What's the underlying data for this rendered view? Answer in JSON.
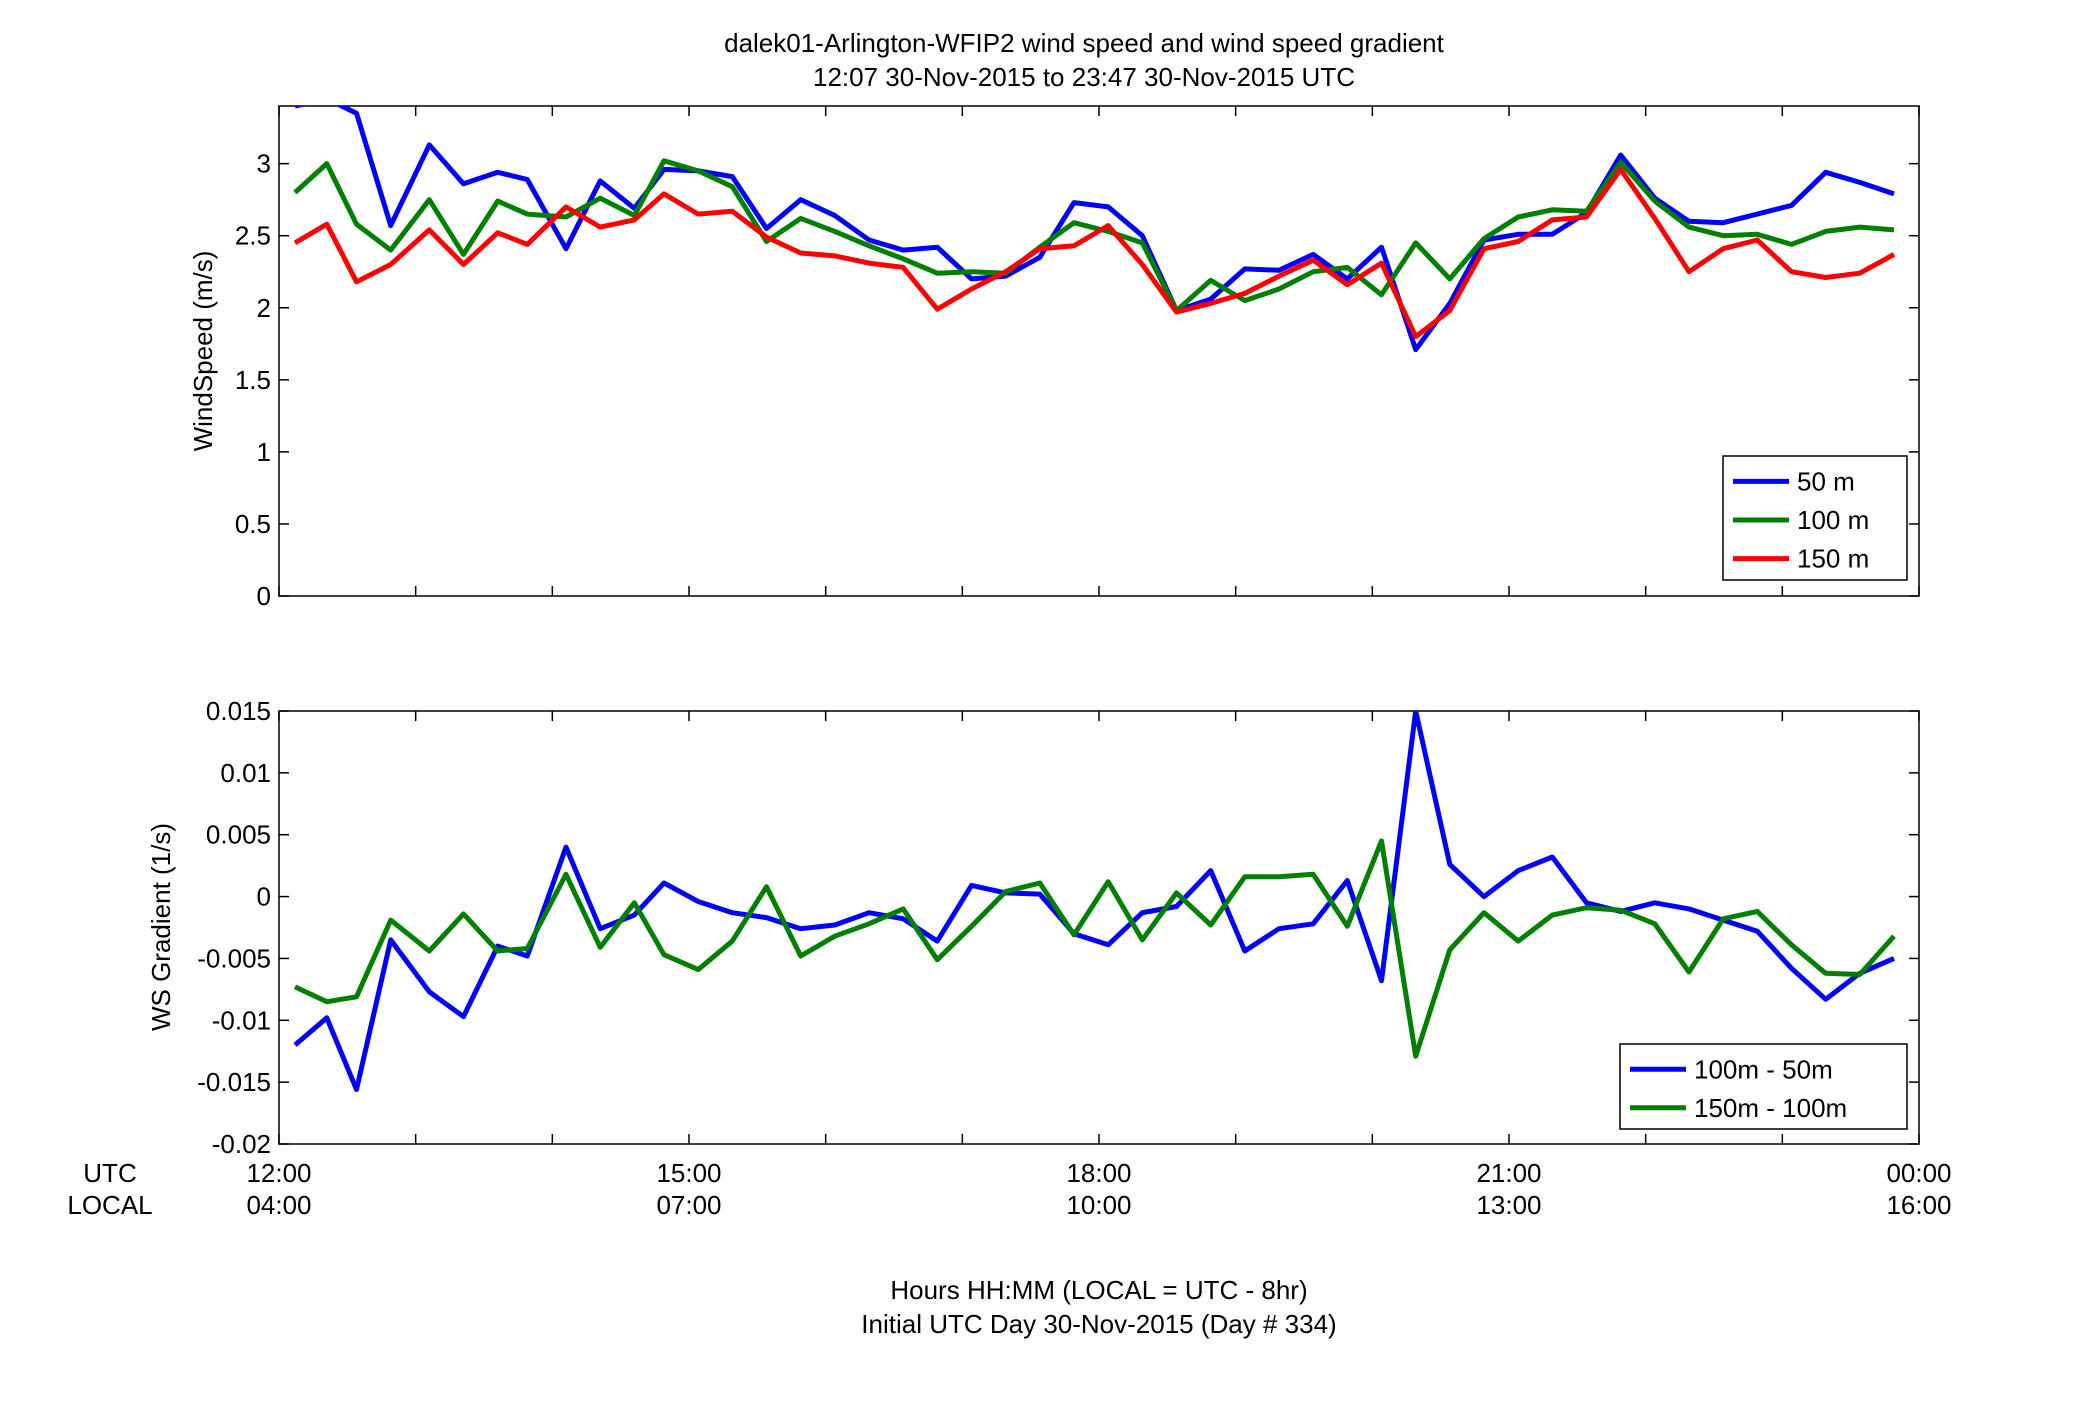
{
  "title_line1": "dalek01-Arlington-WFIP2  wind speed and wind speed gradient",
  "title_line2": "12:07 30-Nov-2015 to 23:47 30-Nov-2015  UTC",
  "x_row_labels": {
    "utc": "UTC",
    "local": "LOCAL"
  },
  "x_ticks_utc": [
    "12:00",
    "15:00",
    "18:00",
    "21:00",
    "00:00"
  ],
  "x_ticks_local": [
    "04:00",
    "07:00",
    "10:00",
    "13:00",
    "16:00"
  ],
  "xlabel_line1": "Hours HH:MM  (LOCAL = UTC - 8hr)",
  "xlabel_line2": "Initial UTC Day 30-Nov-2015 (Day # 334)",
  "colors": {
    "blue": "#0000ff",
    "green": "#007f00",
    "red": "#ff0000"
  },
  "chart_data": [
    {
      "type": "line",
      "ylabel": "WindSpeed (m/s)",
      "xlim": [
        12.0,
        24.0
      ],
      "ylim": [
        0,
        3.4
      ],
      "yticks": [
        "0",
        "0.5",
        "1",
        "1.5",
        "2",
        "2.5",
        "3"
      ],
      "legend_position": "bottom-right",
      "x": [
        12.117,
        12.35,
        12.567,
        12.817,
        13.1,
        13.35,
        13.6,
        13.817,
        14.1,
        14.35,
        14.6,
        14.817,
        15.067,
        15.317,
        15.567,
        15.817,
        16.067,
        16.317,
        16.567,
        16.817,
        17.067,
        17.317,
        17.567,
        17.817,
        18.067,
        18.317,
        18.567,
        18.817,
        19.067,
        19.317,
        19.567,
        19.817,
        20.067,
        20.317,
        20.567,
        20.817,
        21.067,
        21.317,
        21.567,
        21.817,
        22.067,
        22.317,
        22.567,
        22.817,
        23.067,
        23.317,
        23.567,
        23.817
      ],
      "series": [
        {
          "name": "50 m",
          "color": "#0000ff",
          "values": [
            3.4,
            3.45,
            3.35,
            2.57,
            3.13,
            2.86,
            2.94,
            2.89,
            2.41,
            2.88,
            2.69,
            2.96,
            2.95,
            2.91,
            2.55,
            2.75,
            2.64,
            2.47,
            2.4,
            2.42,
            2.2,
            2.22,
            2.35,
            2.73,
            2.7,
            2.5,
            1.98,
            2.06,
            2.27,
            2.26,
            2.37,
            2.2,
            2.42,
            1.71,
            2.03,
            2.47,
            2.51,
            2.51,
            2.66,
            3.06,
            2.76,
            2.6,
            2.59,
            2.65,
            2.71,
            2.94,
            2.87,
            2.79
          ]
        },
        {
          "name": "100 m",
          "color": "#007f00",
          "values": [
            2.8,
            3.0,
            2.58,
            2.4,
            2.75,
            2.37,
            2.74,
            2.65,
            2.63,
            2.76,
            2.64,
            3.02,
            2.95,
            2.84,
            2.46,
            2.62,
            2.53,
            2.43,
            2.34,
            2.24,
            2.25,
            2.24,
            2.42,
            2.59,
            2.53,
            2.45,
            1.98,
            2.19,
            2.05,
            2.13,
            2.25,
            2.28,
            2.09,
            2.45,
            2.2,
            2.48,
            2.63,
            2.68,
            2.67,
            3.01,
            2.74,
            2.56,
            2.5,
            2.51,
            2.44,
            2.53,
            2.56,
            2.54
          ]
        },
        {
          "name": "150 m",
          "color": "#ff0000",
          "values": [
            2.45,
            2.58,
            2.18,
            2.3,
            2.54,
            2.3,
            2.52,
            2.44,
            2.7,
            2.56,
            2.61,
            2.79,
            2.65,
            2.67,
            2.49,
            2.38,
            2.36,
            2.31,
            2.28,
            1.99,
            2.13,
            2.25,
            2.41,
            2.43,
            2.57,
            2.3,
            1.97,
            2.03,
            2.1,
            2.22,
            2.33,
            2.16,
            2.31,
            1.8,
            1.98,
            2.41,
            2.46,
            2.61,
            2.63,
            2.96,
            2.62,
            2.25,
            2.41,
            2.47,
            2.25,
            2.21,
            2.24,
            2.37
          ]
        }
      ]
    },
    {
      "type": "line",
      "ylabel": "WS Gradient (1/s)",
      "xlim": [
        12.0,
        24.0
      ],
      "ylim": [
        -0.02,
        0.015
      ],
      "yticks": [
        "-0.02",
        "-0.015",
        "-0.01",
        "-0.005",
        "0",
        "0.005",
        "0.01",
        "0.015"
      ],
      "legend_position": "bottom-right",
      "x": [
        12.117,
        12.35,
        12.567,
        12.817,
        13.1,
        13.35,
        13.6,
        13.817,
        14.1,
        14.35,
        14.6,
        14.817,
        15.067,
        15.317,
        15.567,
        15.817,
        16.067,
        16.317,
        16.567,
        16.817,
        17.067,
        17.317,
        17.567,
        17.817,
        18.067,
        18.317,
        18.567,
        18.817,
        19.067,
        19.317,
        19.567,
        19.817,
        20.067,
        20.317,
        20.567,
        20.817,
        21.067,
        21.317,
        21.567,
        21.817,
        22.067,
        22.317,
        22.567,
        22.817,
        23.067,
        23.317,
        23.567,
        23.817
      ],
      "series": [
        {
          "name": "100m - 50m",
          "color": "#0000ff",
          "values": [
            -0.012,
            -0.0098,
            -0.0156,
            -0.0035,
            -0.0077,
            -0.0097,
            -0.004,
            -0.0048,
            0.004,
            -0.0026,
            -0.0015,
            0.0011,
            -0.0004,
            -0.0013,
            -0.0017,
            -0.0026,
            -0.0023,
            -0.0013,
            -0.0018,
            -0.0036,
            0.0009,
            0.0003,
            0.0002,
            -0.003,
            -0.0039,
            -0.0013,
            -0.0008,
            0.0021,
            -0.0044,
            -0.0026,
            -0.0022,
            0.0013,
            -0.0068,
            0.015,
            0.0026,
            0.0,
            0.0021,
            0.0032,
            -0.0005,
            -0.0012,
            -0.0005,
            -0.001,
            -0.0019,
            -0.0028,
            -0.0058,
            -0.0083,
            -0.0062,
            -0.005
          ]
        },
        {
          "name": "150m - 100m",
          "color": "#007f00",
          "values": [
            -0.0073,
            -0.0085,
            -0.0081,
            -0.0019,
            -0.0044,
            -0.0014,
            -0.0044,
            -0.0042,
            0.0018,
            -0.0041,
            -0.0005,
            -0.0047,
            -0.0059,
            -0.0036,
            0.0008,
            -0.0048,
            -0.0032,
            -0.0022,
            -0.001,
            -0.0051,
            -0.0024,
            0.0004,
            0.0011,
            -0.0031,
            0.0012,
            -0.0035,
            0.0003,
            -0.0023,
            0.0016,
            0.0016,
            0.0018,
            -0.0024,
            0.0045,
            -0.0129,
            -0.0043,
            -0.0013,
            -0.0036,
            -0.0015,
            -0.0009,
            -0.0011,
            -0.0022,
            -0.0061,
            -0.0018,
            -0.0012,
            -0.0039,
            -0.0062,
            -0.0063,
            -0.0032
          ]
        }
      ]
    }
  ]
}
